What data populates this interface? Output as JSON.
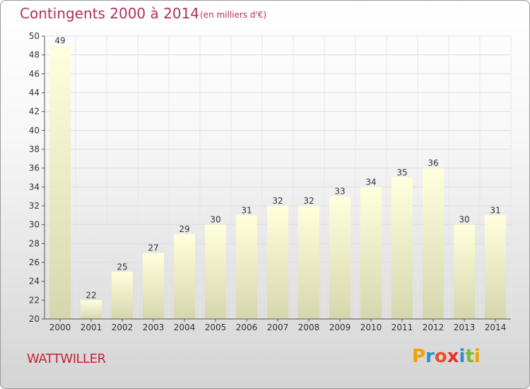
{
  "header": {
    "title": "Contingents 2000 à 2014",
    "subtitle": "(en milliers d'€)"
  },
  "footer": {
    "commune": "WATTWILLER",
    "logo_letters": [
      "P",
      "r",
      "o",
      "x",
      "i",
      "t",
      "i"
    ],
    "logo_colors": [
      "#f0a000",
      "#2a8fd0",
      "#e8502a",
      "#e8302a",
      "#2a8fd0",
      "#80b830",
      "#f0a000"
    ]
  },
  "chart_data": {
    "type": "bar",
    "categories": [
      "2000",
      "2001",
      "2002",
      "2003",
      "2004",
      "2005",
      "2006",
      "2007",
      "2008",
      "2009",
      "2010",
      "2011",
      "2012",
      "2013",
      "2014"
    ],
    "values": [
      49,
      22,
      25,
      27,
      29,
      30,
      31,
      32,
      32,
      33,
      34,
      35,
      36,
      30,
      31
    ],
    "title": "Contingents 2000 à 2014",
    "subtitle": "(en milliers d'€)",
    "ylim": [
      20,
      50
    ],
    "yticks": [
      20,
      22,
      24,
      26,
      28,
      30,
      32,
      34,
      36,
      38,
      40,
      42,
      44,
      46,
      48,
      50
    ],
    "grid": true,
    "bar_color_top": "#ffffdd",
    "bar_color_bottom": "#d8d8b0"
  }
}
